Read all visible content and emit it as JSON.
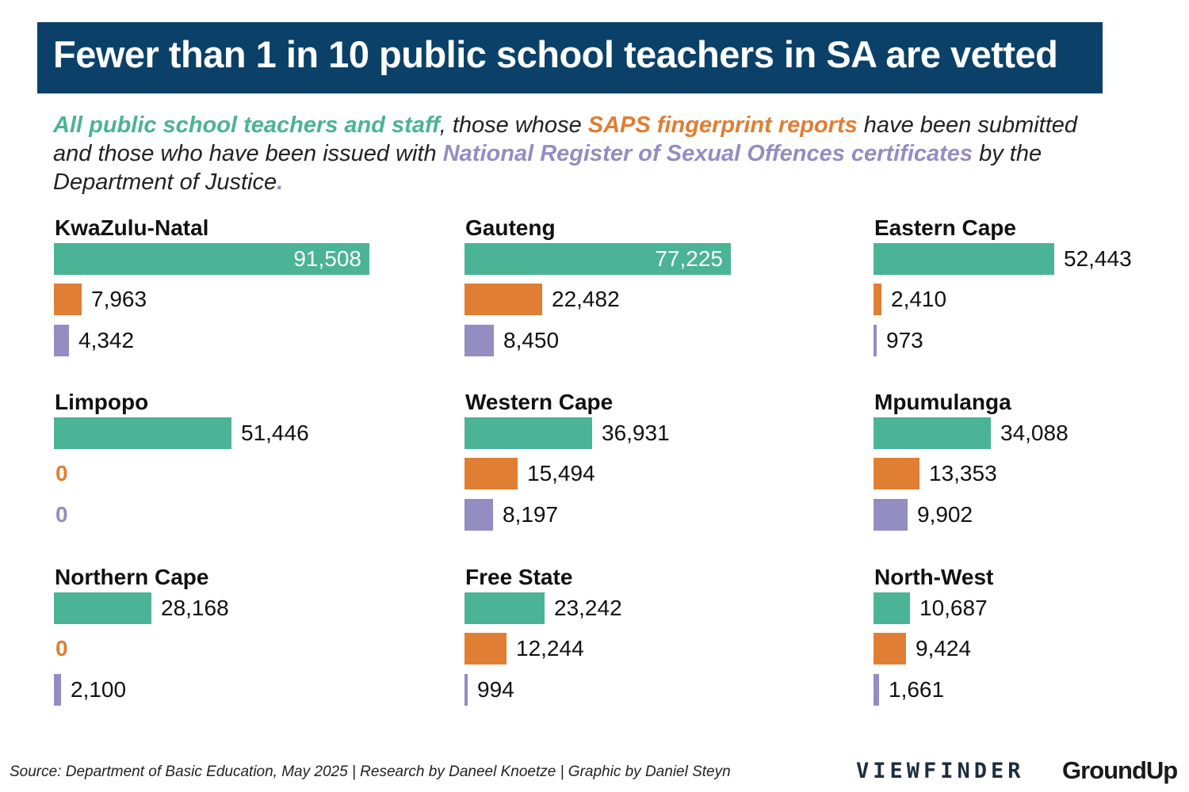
{
  "title": "Fewer than 1 in 10 public school teachers in SA are vetted",
  "subtitle": {
    "parts": [
      {
        "text": "All public school teachers and staff",
        "color": "#4bb396",
        "bold": true
      },
      {
        "text": ", those whose ",
        "color": "#222222",
        "bold": false
      },
      {
        "text": "SAPS fingerprint reports",
        "color": "#e07e33",
        "bold": true
      },
      {
        "text": " have been submitted and those who have been issued with ",
        "color": "#222222",
        "bold": false
      },
      {
        "text": "National Register of Sexual Offences certificates",
        "color": "#938dc2",
        "bold": true
      },
      {
        "text": " by the Department of Justice",
        "color": "#222222",
        "bold": false
      },
      {
        "text": ".",
        "color": "#938dc2",
        "bold": true
      }
    ]
  },
  "colors": {
    "banner": "#0b4168",
    "staff": "#4bb396",
    "saps": "#e07e33",
    "nrso": "#938dc2"
  },
  "chart_data": {
    "type": "bar",
    "orientation": "horizontal",
    "series_names": [
      "All public school teachers and staff",
      "SAPS fingerprint reports",
      "National Register of Sexual Offences certificates"
    ],
    "panels": [
      {
        "name": "KwaZulu-Natal",
        "values": [
          91508,
          7963,
          4342
        ],
        "labels": [
          "91,508",
          "7,963",
          "4,342"
        ]
      },
      {
        "name": "Gauteng",
        "values": [
          77225,
          22482,
          8450
        ],
        "labels": [
          "77,225",
          "22,482",
          "8,450"
        ]
      },
      {
        "name": "Eastern Cape",
        "values": [
          52443,
          2410,
          973
        ],
        "labels": [
          "52,443",
          "2,410",
          "973"
        ]
      },
      {
        "name": "Limpopo",
        "values": [
          51446,
          0,
          0
        ],
        "labels": [
          "51,446",
          "0",
          "0"
        ]
      },
      {
        "name": "Western Cape",
        "values": [
          36931,
          15494,
          8197
        ],
        "labels": [
          "36,931",
          "15,494",
          "8,197"
        ]
      },
      {
        "name": "Mpumulanga",
        "values": [
          34088,
          13353,
          9902
        ],
        "labels": [
          "34,088",
          "13,353",
          "9,902"
        ]
      },
      {
        "name": "Northern Cape",
        "values": [
          28168,
          0,
          2100
        ],
        "labels": [
          "28,168",
          "0",
          "2,100"
        ]
      },
      {
        "name": "Free State",
        "values": [
          23242,
          12244,
          994
        ],
        "labels": [
          "23,242",
          "12,244",
          "994"
        ]
      },
      {
        "name": "North-West",
        "values": [
          10687,
          9424,
          1661
        ],
        "labels": [
          "10,687",
          "9,424",
          "1,661"
        ]
      }
    ]
  },
  "footer": {
    "source": "Source: Department of Basic Education, May 2025 | Research by Daneel Knoetze | Graphic by Daniel Steyn",
    "logo_viewfinder": "VIEWFINDER",
    "logo_groundup": "GroundUp"
  }
}
